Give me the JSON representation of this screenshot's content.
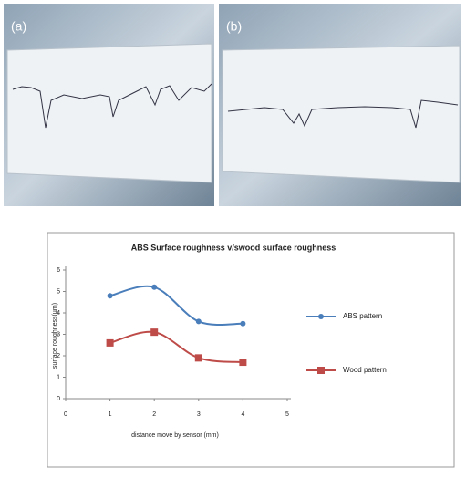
{
  "panels": [
    {
      "label": "(a)"
    },
    {
      "label": "(b)"
    }
  ],
  "chart_data": {
    "type": "line",
    "title": "ABS Surface roughness v/swood surface roughness",
    "x_label": "distance move by sensor (mm)",
    "y_label": "surface roughness(µm)",
    "x": [
      1,
      2,
      3,
      4
    ],
    "series": [
      {
        "name": "ABS pattern",
        "color": "#4a7ebb",
        "marker": "circle",
        "values": [
          4.8,
          5.2,
          3.6,
          3.5
        ]
      },
      {
        "name": "Wood pattern",
        "color": "#be4b48",
        "marker": "square",
        "values": [
          2.6,
          3.1,
          1.9,
          1.7
        ]
      }
    ],
    "xlim": [
      0,
      5
    ],
    "xticks": [
      0,
      1,
      2,
      3,
      4,
      5
    ],
    "ylim": [
      0,
      6
    ],
    "yticks": [
      0,
      1,
      2,
      3,
      4,
      5,
      6
    ],
    "smooth": true,
    "legend": "right"
  }
}
